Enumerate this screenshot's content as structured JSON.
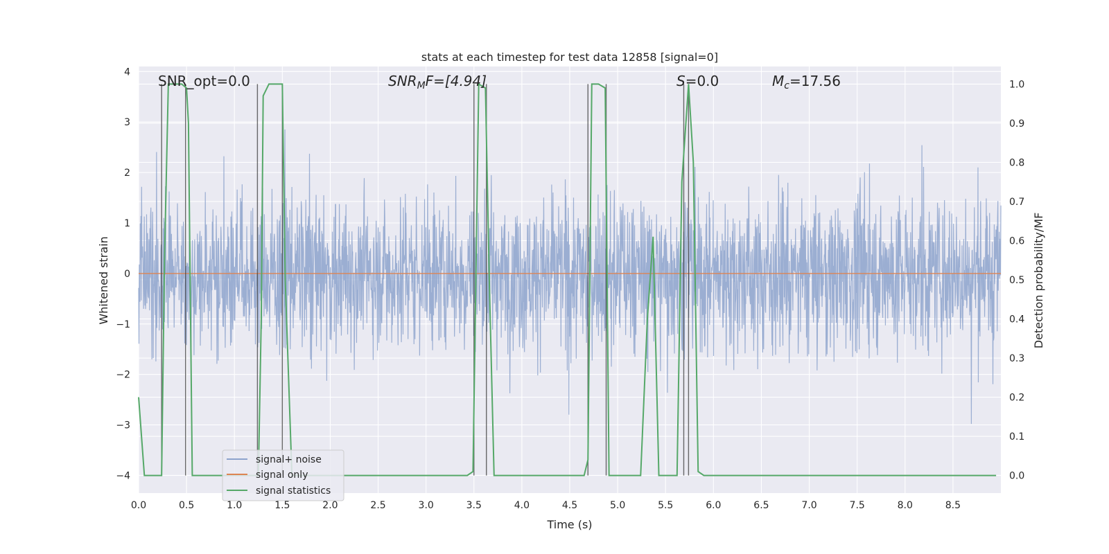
{
  "chart_data": {
    "type": "line",
    "title": "stats at each timestep for test data 12858 [signal=0]",
    "xlabel": "Time (s)",
    "ylabel": "Whitened strain",
    "y2label": "Detection probability/MF",
    "xlim": [
      0.0,
      9.0
    ],
    "ylim": [
      -4.35,
      4.1
    ],
    "y2lim": [
      -0.045,
      1.045
    ],
    "xticks": [
      "0.0",
      "0.5",
      "1.0",
      "1.5",
      "2.0",
      "2.5",
      "3.0",
      "3.5",
      "4.0",
      "4.5",
      "5.0",
      "5.5",
      "6.0",
      "6.5",
      "7.0",
      "7.5",
      "8.0",
      "8.5"
    ],
    "yticks": [
      "4",
      "3",
      "2",
      "1",
      "0",
      "−1",
      "−2",
      "−3",
      "−4"
    ],
    "y2ticks": [
      "1.0",
      "0.9",
      "0.8",
      "0.7",
      "0.6",
      "0.5",
      "0.4",
      "0.3",
      "0.2",
      "0.1",
      "0.0"
    ],
    "grid": true,
    "legend_position": "lower-left",
    "annotations": {
      "snr_opt": "SNR_opt=0.0",
      "snr_mf_base": "SNR",
      "snr_mf_sub": "M",
      "snr_mf_rest": "F=[4.94]",
      "s_base": "S",
      "s_rest": "=0.0",
      "mc_base": "M",
      "mc_sub": "c",
      "mc_rest": "=17.56"
    },
    "series": [
      {
        "name": "signal+ noise",
        "color": "#8da3cc",
        "envelope": "strain noise, approx. within −3.6 to 3.8"
      },
      {
        "name": "signal only",
        "color": "#dd8452",
        "values_const": 0.0
      },
      {
        "name": "signal statistics",
        "color": "#55a868",
        "x": [
          0.0,
          0.06,
          0.24,
          0.27,
          0.31,
          0.45,
          0.5,
          0.52,
          0.56,
          1.25,
          1.28,
          1.3,
          1.36,
          1.5,
          1.53,
          1.6,
          3.43,
          3.49,
          3.55,
          3.62,
          3.66,
          3.71,
          4.65,
          4.69,
          4.73,
          4.8,
          4.87,
          4.91,
          4.96,
          5.24,
          5.31,
          5.37,
          5.43,
          5.62,
          5.67,
          5.74,
          5.79,
          5.84,
          5.9,
          6.0,
          8.95
        ],
        "y": [
          0.2,
          0.0,
          0.0,
          0.55,
          1.0,
          1.0,
          0.99,
          0.9,
          0.0,
          0.0,
          0.4,
          0.97,
          1.0,
          1.0,
          0.5,
          0.0,
          0.0,
          0.01,
          1.0,
          0.99,
          0.5,
          0.0,
          0.0,
          0.04,
          1.0,
          1.0,
          0.99,
          0.0,
          0.0,
          0.0,
          0.4,
          0.61,
          0.0,
          0.0,
          0.75,
          1.0,
          0.8,
          0.01,
          0.0,
          0.0,
          0.0
        ]
      }
    ],
    "vertical_markers": [
      0.24,
      0.49,
      1.24,
      1.5,
      3.5,
      3.63,
      4.69,
      4.88,
      5.69,
      5.74
    ]
  }
}
